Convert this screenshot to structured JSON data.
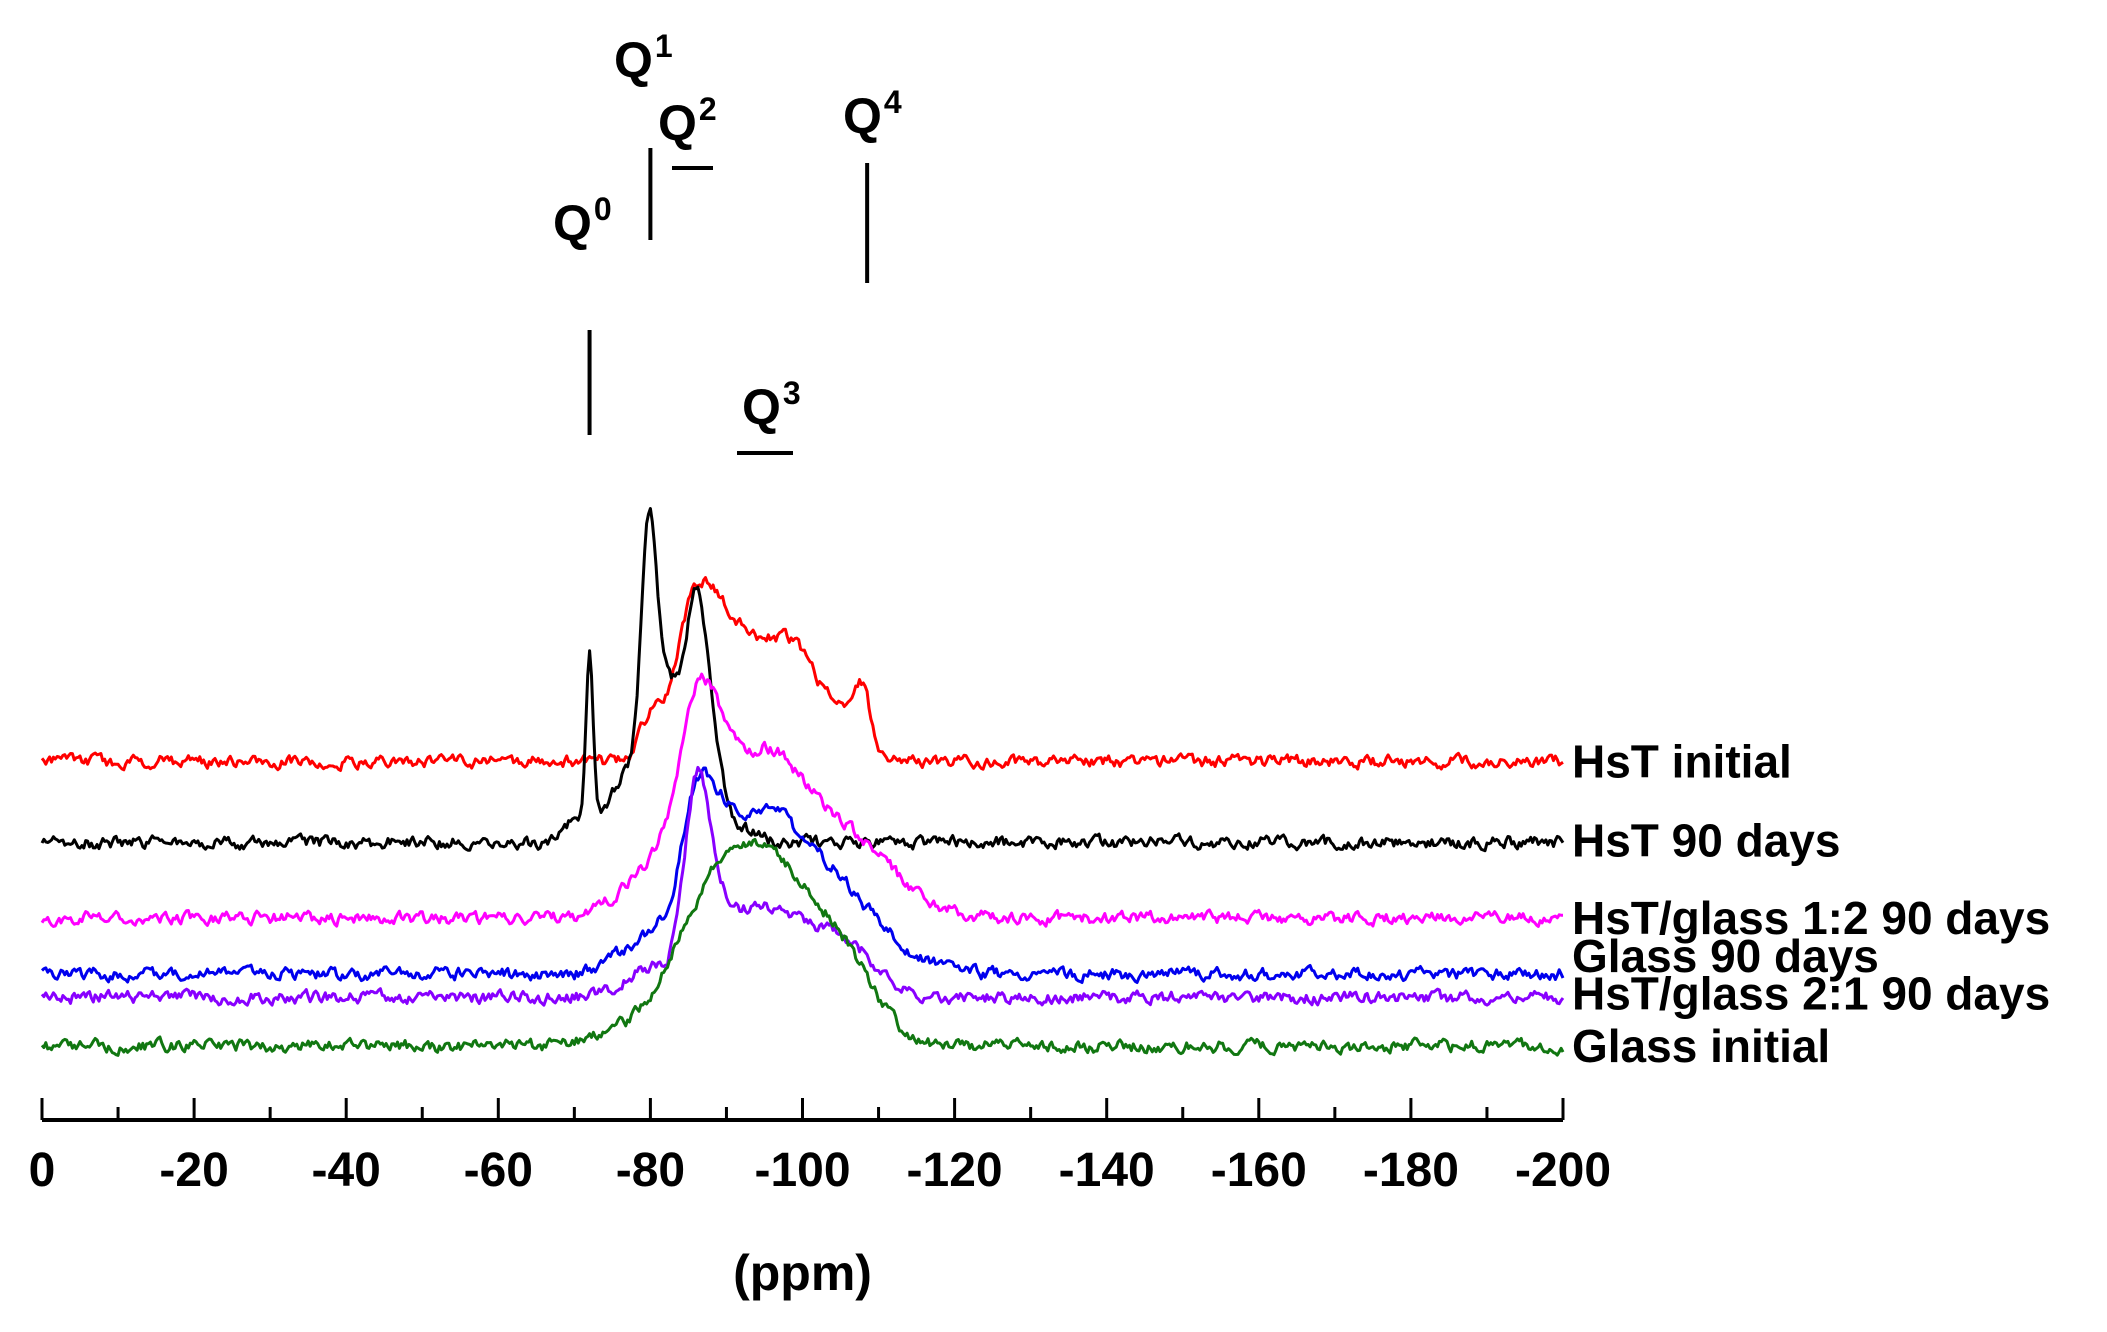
{
  "chart_data": {
    "type": "line",
    "title": "",
    "xlabel": "(ppm)",
    "ylabel": "",
    "xlim": [
      0,
      -200
    ],
    "x_major_ticks": [
      0,
      -20,
      -40,
      -60,
      -80,
      -100,
      -120,
      -140,
      -160,
      -180,
      -200
    ],
    "x_tick_labels": [
      "0",
      "-20",
      "-40",
      "-60",
      "-80",
      "-100",
      "-120",
      "-140",
      "-160",
      "-180",
      "-200"
    ],
    "x_minor_step": 10,
    "grid": false,
    "legend": "labels at right end of each trace",
    "noise_amplitude": 0.1,
    "series": [
      {
        "name": "HsT initial",
        "color": "#ff0000",
        "offset": 7.9,
        "peaks": [
          [
            -80,
            1.1,
            1.5
          ],
          [
            -85,
            1.8,
            2.2
          ],
          [
            -87.5,
            2.6,
            3.0
          ],
          [
            -93.5,
            3.0,
            5.0
          ],
          [
            -100,
            1.8,
            3.0
          ],
          [
            -105.5,
            1.1,
            1.8
          ],
          [
            -108,
            1.6,
            1.0
          ]
        ]
      },
      {
        "name": "HsT 90 days",
        "color": "#000000",
        "offset": 5.65,
        "peaks": [
          [
            -70,
            0.6,
            1.2
          ],
          [
            -72,
            4.8,
            0.5
          ],
          [
            -74.5,
            1.0,
            1.5
          ],
          [
            -77,
            1.6,
            1.2
          ],
          [
            -79.8,
            8.3,
            1.1
          ],
          [
            -82.5,
            4.0,
            1.5
          ],
          [
            -86,
            6.7,
            1.4
          ],
          [
            -88.5,
            1.8,
            1.3
          ],
          [
            -92,
            0.4,
            2.0
          ]
        ]
      },
      {
        "name": "HsT/glass 1:2 90 days",
        "color": "#ff00ff",
        "offset": 3.55,
        "peaks": [
          [
            -77,
            0.6,
            3.0
          ],
          [
            -82,
            1.4,
            3.0
          ],
          [
            -86,
            4.0,
            2.2
          ],
          [
            -89,
            1.5,
            2.0
          ],
          [
            -94.5,
            4.5,
            5.5
          ],
          [
            -105,
            1.8,
            5.0
          ],
          [
            -112,
            0.6,
            5.0
          ]
        ]
      },
      {
        "name": "Glass 90 days",
        "color": "#0000ee",
        "offset": 2.0,
        "peaks": [
          [
            -78,
            0.7,
            3.0
          ],
          [
            -83,
            1.1,
            2.5
          ],
          [
            -86,
            3.2,
            1.8
          ],
          [
            -89,
            1.8,
            2.0
          ],
          [
            -94.5,
            4.4,
            5.0
          ],
          [
            -104,
            2.0,
            4.5
          ],
          [
            -111,
            0.6,
            5.0
          ]
        ]
      },
      {
        "name": "HsT/glass 2:1 90 days",
        "color": "#8800ff",
        "offset": 1.35,
        "peaks": [
          [
            -80,
            0.8,
            3.5
          ],
          [
            -86,
            5.0,
            1.6
          ],
          [
            -88.5,
            1.2,
            1.6
          ],
          [
            -93,
            2.2,
            4.5
          ],
          [
            -101,
            1.4,
            4.5
          ],
          [
            -107,
            0.9,
            3.5
          ]
        ]
      },
      {
        "name": "Glass initial",
        "color": "#117711",
        "offset": 0.0,
        "peaks": [
          [
            -74,
            0.3,
            3.0
          ],
          [
            -83,
            1.5,
            4.0
          ],
          [
            -88,
            1.8,
            3.5
          ],
          [
            -95,
            5.2,
            5.5
          ],
          [
            -104,
            1.6,
            4.0
          ],
          [
            -108,
            0.8,
            4.0
          ]
        ]
      }
    ],
    "annotations": [
      {
        "text": "Q",
        "sup": "0",
        "line": "vertical"
      },
      {
        "text": "Q",
        "sup": "1",
        "line": "vertical"
      },
      {
        "text": "Q",
        "sup": "2",
        "line": "horizontal"
      },
      {
        "text": "Q",
        "sup": "3",
        "line": "horizontal"
      },
      {
        "text": "Q",
        "sup": "4",
        "line": "vertical"
      }
    ]
  }
}
